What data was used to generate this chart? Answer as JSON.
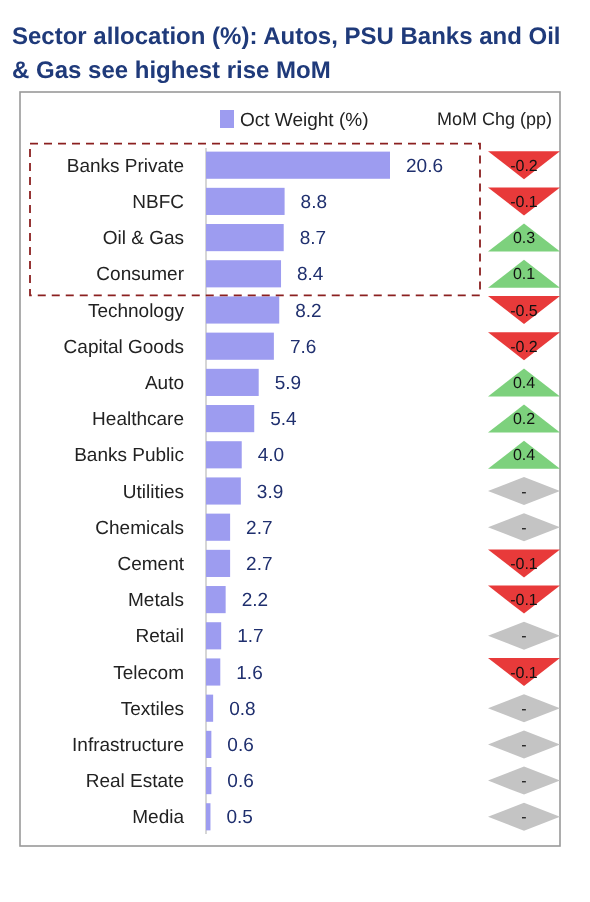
{
  "chart_data": {
    "type": "bar",
    "orientation": "horizontal",
    "title": "Sector allocation (%): Autos, PSU Banks and Oil & Gas see highest rise MoM",
    "categories": [
      "Banks Private",
      "NBFC",
      "Oil & Gas",
      "Consumer",
      "Technology",
      "Capital Goods",
      "Auto",
      "Healthcare",
      "Banks Public",
      "Utilities",
      "Chemicals",
      "Cement",
      "Metals",
      "Retail",
      "Telecom",
      "Textiles",
      "Infrastructure",
      "Real Estate",
      "Media"
    ],
    "series": [
      {
        "name": "Oct Weight (%)",
        "color": "#9d9cf0",
        "values": [
          20.6,
          8.8,
          8.7,
          8.4,
          8.2,
          7.6,
          5.9,
          5.4,
          4.0,
          3.9,
          2.7,
          2.7,
          2.2,
          1.7,
          1.6,
          0.8,
          0.6,
          0.6,
          0.5
        ],
        "value_labels": [
          "20.6",
          "8.8",
          "8.7",
          "8.4",
          "8.2",
          "7.6",
          "5.9",
          "5.4",
          "4.0",
          "3.9",
          "2.7",
          "2.7",
          "2.2",
          "1.7",
          "1.6",
          "0.8",
          "0.6",
          "0.6",
          "0.5"
        ]
      }
    ],
    "legend": "top",
    "annotations": [
      "MoM Chg (pp)",
      "-0.2",
      "-0.1",
      "0.3",
      "0.1",
      "-0.5",
      "-0.2",
      "0.4",
      "0.2",
      "0.4",
      "-",
      "-",
      "-0.1",
      "-0.1",
      "-",
      "-0.1",
      "-",
      "-",
      "-",
      "-"
    ]
  }
}
